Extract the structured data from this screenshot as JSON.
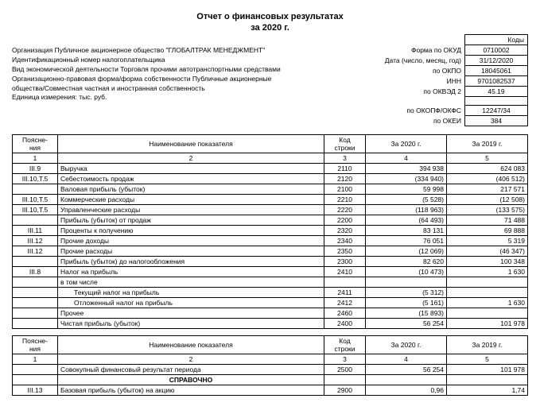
{
  "title_line1": "Отчет о финансовых результатах",
  "title_line2": "за 2020 г.",
  "org_info": {
    "org": "Организация Публичное акционерное общество \"ГЛОБАЛТРАК МЕНЕДЖМЕНТ\"",
    "inn": "Идентификационный номер налогоплательщика",
    "activity": "Вид экономической деятельности Торговля прочими автотранспортными средствами",
    "form1": "Организационно-правовая форма/форма собственности Публичные акционерные",
    "form2": "общества/Совместная частная и иностранная собственность",
    "unit": "Единица измерения: тыс. руб."
  },
  "codes": {
    "header": "Коды",
    "okud_label": "Форма по ОКУД",
    "okud": "0710002",
    "date_label": "Дата (число, месяц, год)",
    "date": "31/12/2020",
    "okpo_label": "по ОКПО",
    "okpo": "18045061",
    "inn_label": "ИНН",
    "inn": "9701082537",
    "okved_label": "по ОКВЭД 2",
    "okved": "45.19",
    "okopf_label": "по ОКОПФ/ОКФС",
    "okopf": "12247/34",
    "okei_label": "по ОКЕИ",
    "okei": "384"
  },
  "headers": {
    "expl": "Поясне-\nния",
    "name": "Наименование показателя",
    "code": "Код\nстроки",
    "y2020": "За 2020 г.",
    "y2019": "За 2019 г."
  },
  "colnums": [
    "1",
    "2",
    "3",
    "4",
    "5"
  ],
  "rows1": [
    {
      "e": "III.9",
      "n": "Выручка",
      "c": "2110",
      "a": "394 938",
      "b": "624 083"
    },
    {
      "e": "III.10,T.5",
      "n": "Себестоимость продаж",
      "c": "2120",
      "a": "(334 940)",
      "b": "(406 512)"
    },
    {
      "e": "",
      "n": "Валовая прибыль (убыток)",
      "c": "2100",
      "a": "59 998",
      "b": "217 571"
    },
    {
      "e": "III.10,T.5",
      "n": "Коммерческие расходы",
      "c": "2210",
      "a": "(5 528)",
      "b": "(12 508)"
    },
    {
      "e": "III.10,T.5",
      "n": "Управленческие расходы",
      "c": "2220",
      "a": "(118 963)",
      "b": "(133 575)"
    },
    {
      "e": "",
      "n": "Прибыль (убыток) от продаж",
      "c": "2200",
      "a": "(64 493)",
      "b": "71 488"
    },
    {
      "e": "III.11",
      "n": "Проценты к получению",
      "c": "2320",
      "a": "83 131",
      "b": "69 888"
    },
    {
      "e": "III.12",
      "n": "Прочие доходы",
      "c": "2340",
      "a": "76 051",
      "b": "5 319"
    },
    {
      "e": "III.12",
      "n": "Прочие расходы",
      "c": "2350",
      "a": "(12 069)",
      "b": "(46 347)"
    },
    {
      "e": "",
      "n": "Прибыль (убыток) до налогообложения",
      "c": "2300",
      "a": "82 620",
      "b": "100 348"
    },
    {
      "e": "III.8",
      "n": "Налог на прибыль",
      "c": "2410",
      "a": "(10 473)",
      "b": "1 630"
    },
    {
      "e": "",
      "n": "в том числе",
      "c": "",
      "a": "",
      "b": ""
    },
    {
      "e": "",
      "n": "Текущий налог на прибыль",
      "indent": true,
      "c": "2411",
      "a": "(5 312)",
      "b": ""
    },
    {
      "e": "",
      "n": "Отложенный налог на прибыль",
      "indent": true,
      "c": "2412",
      "a": "(5 161)",
      "b": "1 630"
    },
    {
      "e": "",
      "n": "Прочее",
      "c": "2460",
      "a": "(15 893)",
      "b": ""
    },
    {
      "e": "",
      "n": "Чистая прибыль (убыток)",
      "c": "2400",
      "a": "56 254",
      "b": "101 978"
    }
  ],
  "rows2": [
    {
      "e": "",
      "n": "Совокупный финансовый результат периода",
      "c": "2500",
      "a": "56 254",
      "b": "101 978"
    },
    {
      "e": "",
      "n": "СПРАВОЧНО",
      "bold": true,
      "center": true,
      "c": "",
      "a": "",
      "b": ""
    },
    {
      "e": "III.13",
      "n": "Базовая прибыль (убыток) на акцию",
      "c": "2900",
      "a": "0,96",
      "b": "1,74"
    }
  ]
}
